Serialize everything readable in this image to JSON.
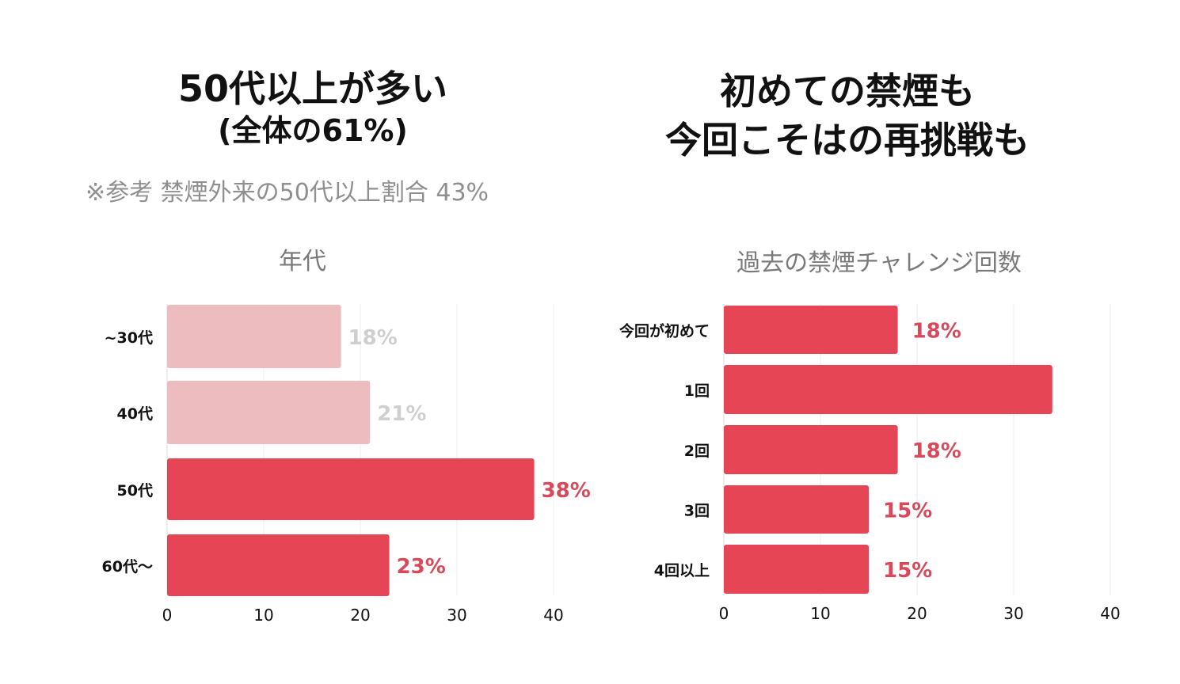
{
  "left": {
    "heading_line1": "50代以上が多い",
    "heading_line2": "(全体の61%)",
    "note": "※参考 禁煙外来の50代以上割合 43%"
  },
  "right": {
    "heading_line1": "初めての禁煙も",
    "heading_line2": "今回こそはの再挑戦も"
  },
  "colors": {
    "accent": "#e64556",
    "muted_bar": "#ecbcbf",
    "muted_label": "#cfcfcf",
    "accent_label": "#d9495a",
    "grid": "#eeeeee"
  },
  "chart_data": [
    {
      "type": "bar",
      "orientation": "horizontal",
      "title": "年代",
      "categories": [
        "~30代",
        "40代",
        "50代",
        "60代〜"
      ],
      "values": [
        18,
        21,
        38,
        23
      ],
      "value_labels": [
        "18%",
        "21%",
        "38%",
        "23%"
      ],
      "highlighted": [
        false,
        false,
        true,
        true
      ],
      "xlim": [
        0,
        40
      ],
      "xticks": [
        "0",
        "10",
        "20",
        "30",
        "40"
      ],
      "grid": true
    },
    {
      "type": "bar",
      "orientation": "horizontal",
      "title": "過去の禁煙チャレンジ回数",
      "categories": [
        "今回が初めて",
        "1回",
        "2回",
        "3回",
        "4回以上"
      ],
      "values": [
        18,
        34,
        18,
        15,
        15
      ],
      "value_labels": [
        "18%",
        "",
        "18%",
        "15%",
        "15%"
      ],
      "highlighted": [
        true,
        true,
        true,
        true,
        true
      ],
      "xlim": [
        0,
        40
      ],
      "xticks": [
        "0",
        "10",
        "20",
        "30",
        "40"
      ],
      "grid": true
    }
  ]
}
